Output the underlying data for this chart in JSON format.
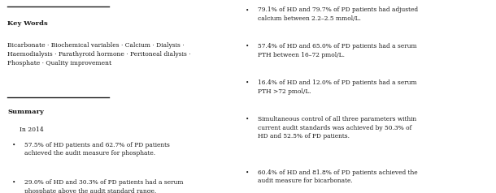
{
  "bg_color": "#ffffff",
  "text_color": "#1a1a1a",
  "keywords_title": "Key Words",
  "keywords_body": "Bicarbonate · Biochemical variables · Calcium · Dialysis ·\nHaemodialysis · Parathyroid hormone · Peritoneal dialysis ·\nPhosphate · Quality improvement",
  "summary_title": "Summary",
  "summary_intro": "In 2014",
  "left_bullets": [
    "57.5% of HD patients and 62.7% of PD patients\nachieved the audit measure for phosphate.",
    "29.0% of HD and 30.3% of PD patients had a serum\nphosphate above the audit standard range."
  ],
  "right_bullets": [
    "79.1% of HD and 79.7% of PD patients had adjusted\ncalcium between 2.2–2.5 mmol/L.",
    "57.4% of HD and 65.0% of PD patients had a serum\nPTH between 16–72 pmol/L.",
    "16.4% of HD and 12.0% of PD patients had a serum\nPTH >72 pmol/L.",
    "Simultaneous control of all three parameters within\ncurrent audit standards was achieved by 50.3% of\nHD and 52.5% of PD patients.",
    "60.4% of HD and 81.8% of PD patients achieved the\naudit measure for bicarbonate."
  ],
  "divider_color": "#1a1a1a",
  "font_size_title": 6.0,
  "font_size_body": 5.5,
  "font_size_bullet": 5.4
}
